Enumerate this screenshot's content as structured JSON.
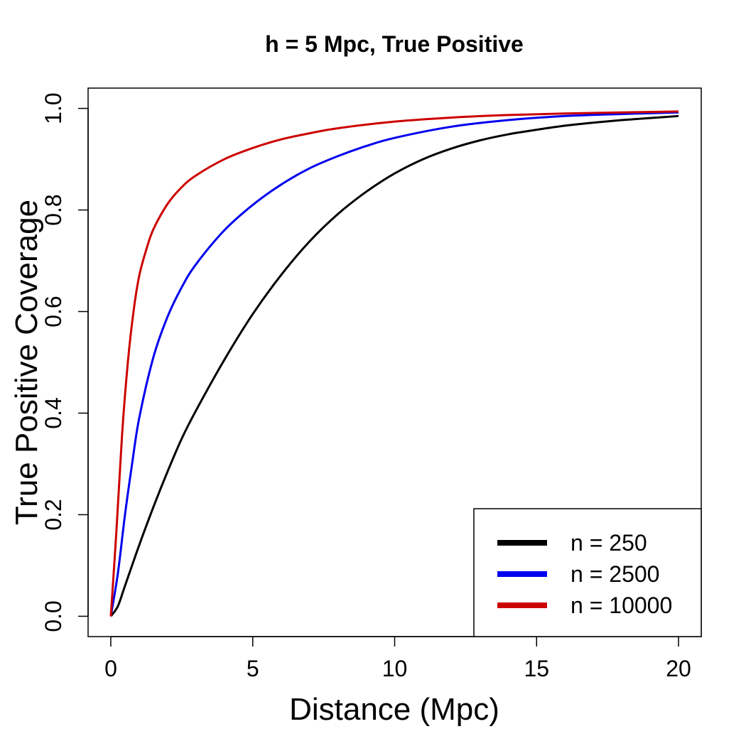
{
  "chart_data": {
    "type": "line",
    "title": "h = 5 Mpc, True Positive",
    "xlabel": "Distance (Mpc)",
    "ylabel": "True Positive Coverage",
    "xlim": [
      -0.8,
      20.8
    ],
    "ylim": [
      -0.04,
      1.04
    ],
    "x_ticks": [
      "0",
      "5",
      "10",
      "15",
      "20"
    ],
    "y_ticks": [
      "0.0",
      "0.2",
      "0.4",
      "0.6",
      "0.8",
      "1.0"
    ],
    "legend_position": "bottom-right",
    "series": [
      {
        "name": "n = 250",
        "color": "#000000",
        "x": [
          0,
          0.25,
          0.5,
          1,
          1.5,
          2,
          2.5,
          3,
          4,
          5,
          6,
          7,
          8,
          9,
          10,
          11,
          12,
          13,
          14,
          15,
          16,
          17,
          18,
          19,
          20
        ],
        "y": [
          0,
          0.02,
          0.06,
          0.14,
          0.215,
          0.285,
          0.35,
          0.405,
          0.505,
          0.595,
          0.672,
          0.738,
          0.792,
          0.836,
          0.872,
          0.9,
          0.921,
          0.937,
          0.949,
          0.958,
          0.966,
          0.972,
          0.977,
          0.981,
          0.985
        ]
      },
      {
        "name": "n = 2500",
        "color": "#0000ee",
        "x": [
          0,
          0.25,
          0.5,
          0.75,
          1,
          1.5,
          2,
          2.5,
          3,
          4,
          5,
          6,
          7,
          8,
          9,
          10,
          12,
          14,
          16,
          18,
          20
        ],
        "y": [
          0,
          0.085,
          0.2,
          0.3,
          0.39,
          0.51,
          0.59,
          0.648,
          0.693,
          0.76,
          0.81,
          0.85,
          0.882,
          0.906,
          0.926,
          0.942,
          0.964,
          0.977,
          0.985,
          0.989,
          0.992
        ]
      },
      {
        "name": "n = 10000",
        "color": "#cc0000",
        "x": [
          0,
          0.2,
          0.4,
          0.6,
          0.8,
          1,
          1.25,
          1.5,
          2,
          2.5,
          3,
          4,
          5,
          6,
          7,
          8,
          10,
          12,
          14,
          16,
          18,
          20
        ],
        "y": [
          0,
          0.17,
          0.36,
          0.5,
          0.6,
          0.67,
          0.722,
          0.762,
          0.812,
          0.845,
          0.868,
          0.9,
          0.922,
          0.939,
          0.951,
          0.961,
          0.974,
          0.982,
          0.987,
          0.99,
          0.992,
          0.994
        ]
      }
    ]
  }
}
